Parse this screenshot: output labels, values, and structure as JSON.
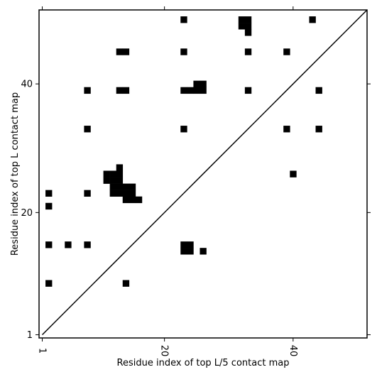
{
  "chart_data": {
    "type": "heatmap",
    "title": "",
    "xlabel": "Residue index of top L/5 contact map",
    "ylabel": "Residue index of top L contact map",
    "xlim": [
      0.5,
      51.5
    ],
    "ylim": [
      0.5,
      51.5
    ],
    "xticks": [
      {
        "value": 1,
        "label": "1"
      },
      {
        "value": 20,
        "label": "20"
      },
      {
        "value": 40,
        "label": "40"
      }
    ],
    "yticks": [
      {
        "value": 1,
        "label": "1"
      },
      {
        "value": 20,
        "label": "20"
      },
      {
        "value": 40,
        "label": "40"
      }
    ],
    "diagonal": true,
    "cell_color": "#000000",
    "background": "#ffffff",
    "cells": [
      [
        23,
        50
      ],
      [
        32,
        50
      ],
      [
        33,
        50
      ],
      [
        43,
        50
      ],
      [
        32,
        49
      ],
      [
        33,
        49
      ],
      [
        33,
        48
      ],
      [
        13,
        45
      ],
      [
        14,
        45
      ],
      [
        23,
        45
      ],
      [
        33,
        45
      ],
      [
        39,
        45
      ],
      [
        8,
        39
      ],
      [
        13,
        39
      ],
      [
        14,
        39
      ],
      [
        23,
        39
      ],
      [
        24,
        39
      ],
      [
        25,
        39
      ],
      [
        26,
        39
      ],
      [
        33,
        39
      ],
      [
        44,
        39
      ],
      [
        25,
        40
      ],
      [
        26,
        40
      ],
      [
        8,
        33
      ],
      [
        23,
        33
      ],
      [
        39,
        33
      ],
      [
        44,
        33
      ],
      [
        40,
        26
      ],
      [
        13,
        27
      ],
      [
        11,
        26
      ],
      [
        12,
        26
      ],
      [
        13,
        26
      ],
      [
        11,
        25
      ],
      [
        12,
        25
      ],
      [
        13,
        25
      ],
      [
        12,
        24
      ],
      [
        13,
        24
      ],
      [
        14,
        24
      ],
      [
        15,
        24
      ],
      [
        12,
        23
      ],
      [
        13,
        23
      ],
      [
        14,
        23
      ],
      [
        15,
        23
      ],
      [
        2,
        23
      ],
      [
        8,
        23
      ],
      [
        14,
        22
      ],
      [
        15,
        22
      ],
      [
        16,
        22
      ],
      [
        2,
        21
      ],
      [
        2,
        15
      ],
      [
        5,
        15
      ],
      [
        8,
        15
      ],
      [
        23,
        15
      ],
      [
        24,
        15
      ],
      [
        23,
        14
      ],
      [
        24,
        14
      ],
      [
        26,
        14
      ],
      [
        2,
        9
      ],
      [
        14,
        9
      ]
    ]
  }
}
